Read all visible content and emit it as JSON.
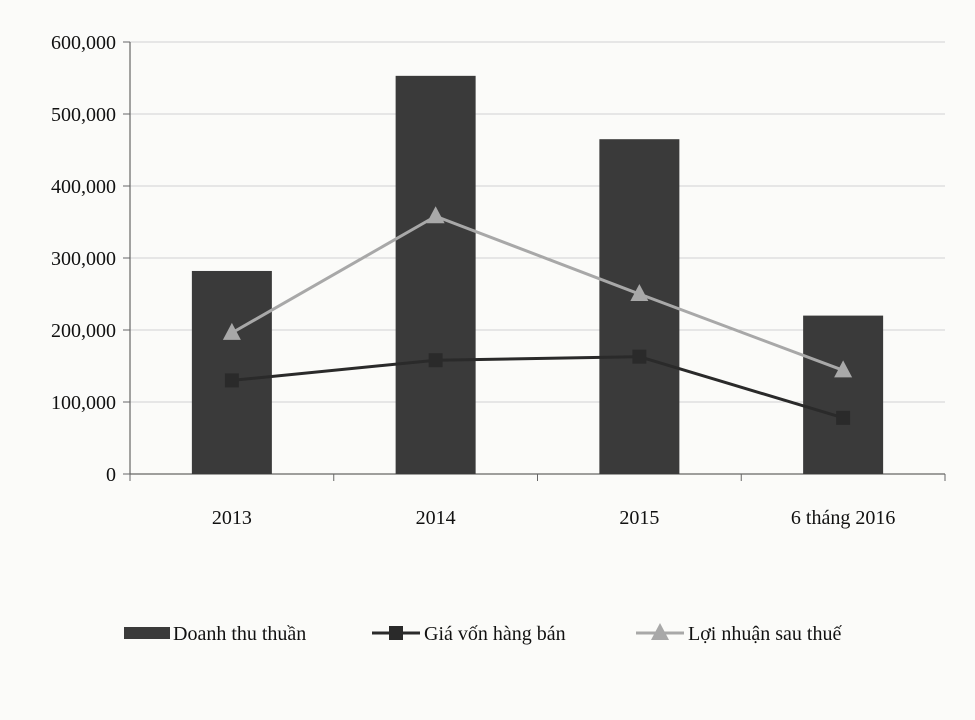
{
  "chart_data": {
    "type": "bar",
    "categories": [
      "2013",
      "2014",
      "2015",
      "6 tháng 2016"
    ],
    "ylim": [
      0,
      600000
    ],
    "yticks": [
      0,
      100000,
      200000,
      300000,
      400000,
      500000,
      600000
    ],
    "ytick_labels": [
      "0",
      "100,000",
      "200,000",
      "300,000",
      "400,000",
      "500,000",
      "600,000"
    ],
    "grid": true,
    "legend_position": "bottom",
    "series": [
      {
        "name": "Doanh thu thuần",
        "kind": "bar",
        "color": "#3a3a3a",
        "values": [
          282000,
          553000,
          465000,
          220000
        ]
      },
      {
        "name": "Giá vốn hàng bán",
        "kind": "line",
        "marker": "square",
        "color": "#2a2a2a",
        "values": [
          130000,
          158000,
          163000,
          78000
        ]
      },
      {
        "name": "Lợi nhuận sau thuế",
        "kind": "line",
        "marker": "triangle",
        "color": "#a8a8a8",
        "values": [
          196000,
          358000,
          250000,
          144000
        ]
      }
    ]
  }
}
